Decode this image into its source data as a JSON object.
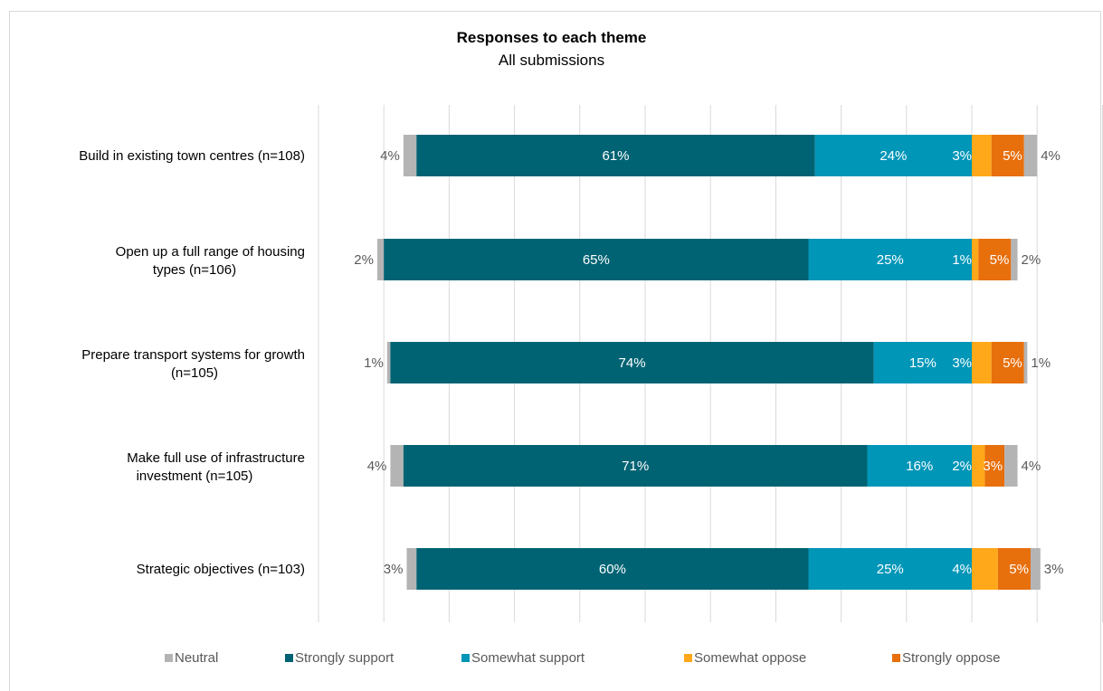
{
  "chart_data": {
    "type": "bar",
    "orientation": "horizontal-diverging-stacked",
    "title": "Responses to each theme",
    "subtitle": "All submissions",
    "categories": [
      "Build in existing town centres (n=108)",
      "Open up a full range of housing types (n=106)",
      "Prepare transport systems for growth (n=105)",
      "Make full use of infrastructure investment (n=105)",
      "Strategic objectives (n=103)"
    ],
    "series": [
      {
        "name": "Neutral",
        "color": "#b4b4b4",
        "values": [
          4,
          2,
          1,
          4,
          3
        ],
        "labels": [
          "4%",
          "2%",
          "1%",
          "4%",
          "3%"
        ]
      },
      {
        "name": "Strongly support",
        "color": "#006373",
        "values": [
          61,
          65,
          74,
          71,
          60
        ],
        "labels": [
          "61%",
          "65%",
          "74%",
          "71%",
          "60%"
        ]
      },
      {
        "name": "Somewhat support",
        "color": "#0096b8",
        "values": [
          24,
          25,
          15,
          16,
          25
        ],
        "labels": [
          "24%",
          "25%",
          "15%",
          "16%",
          "25%"
        ]
      },
      {
        "name": "Somewhat oppose",
        "color": "#ffa81a",
        "values": [
          3,
          1,
          3,
          2,
          4
        ],
        "labels": [
          "3%",
          "1%",
          "3%",
          "2%",
          "4%"
        ]
      },
      {
        "name": "Strongly oppose",
        "color": "#e76f0c",
        "values": [
          5,
          5,
          5,
          3,
          5
        ],
        "labels": [
          "5%",
          "5%",
          "5%",
          "3%",
          "5%"
        ]
      }
    ],
    "neutral_split": "half on each side",
    "grid": true,
    "legend_position": "bottom"
  }
}
